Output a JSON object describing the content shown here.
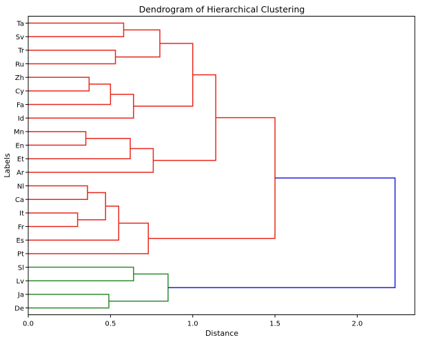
{
  "chart_data": {
    "type": "dendrogram",
    "title": "Dendrogram of Hierarchical Clustering",
    "xlabel": "Distance",
    "ylabel": "Labels",
    "xlim": [
      0,
      2.35
    ],
    "xticks": [
      0.0,
      0.5,
      1.0,
      1.5,
      2.0
    ],
    "xtick_labels": [
      "0.0",
      "0.5",
      "1.0",
      "1.5",
      "2.0"
    ],
    "orientation": "right",
    "colors": {
      "cluster_a": "#e8271b",
      "cluster_b": "#2e8b2e",
      "root": "#1f1fe0"
    },
    "leaves": [
      "Ta",
      "Sv",
      "Tr",
      "Ru",
      "Zh",
      "Cy",
      "Fa",
      "Id",
      "Mn",
      "En",
      "Et",
      "Ar",
      "Nl",
      "Ca",
      "It",
      "Fr",
      "Es",
      "Pt",
      "Sl",
      "Lv",
      "Ja",
      "De"
    ],
    "merges": [
      {
        "a": "Ta",
        "b": "Sv",
        "d": 0.58,
        "color": "cluster_a",
        "id": "m1"
      },
      {
        "a": "Tr",
        "b": "Ru",
        "d": 0.53,
        "color": "cluster_a",
        "id": "m2"
      },
      {
        "a": "m1",
        "b": "m2",
        "d": 0.8,
        "color": "cluster_a",
        "id": "m3"
      },
      {
        "a": "Zh",
        "b": "Cy",
        "d": 0.37,
        "color": "cluster_a",
        "id": "m4"
      },
      {
        "a": "m4",
        "b": "Fa",
        "d": 0.5,
        "color": "cluster_a",
        "id": "m5"
      },
      {
        "a": "m5",
        "b": "Id",
        "d": 0.64,
        "color": "cluster_a",
        "id": "m6"
      },
      {
        "a": "m3",
        "b": "m6",
        "d": 1.0,
        "color": "cluster_a",
        "id": "m7"
      },
      {
        "a": "Mn",
        "b": "En",
        "d": 0.35,
        "color": "cluster_a",
        "id": "m8"
      },
      {
        "a": "m8",
        "b": "Et",
        "d": 0.62,
        "color": "cluster_a",
        "id": "m9"
      },
      {
        "a": "m9",
        "b": "Ar",
        "d": 0.76,
        "color": "cluster_a",
        "id": "m10"
      },
      {
        "a": "m7",
        "b": "m10",
        "d": 1.14,
        "color": "cluster_a",
        "id": "m11"
      },
      {
        "a": "Nl",
        "b": "Ca",
        "d": 0.36,
        "color": "cluster_a",
        "id": "m12"
      },
      {
        "a": "It",
        "b": "Fr",
        "d": 0.3,
        "color": "cluster_a",
        "id": "m13"
      },
      {
        "a": "m12",
        "b": "m13",
        "d": 0.47,
        "color": "cluster_a",
        "id": "m14"
      },
      {
        "a": "m14",
        "b": "Es",
        "d": 0.55,
        "color": "cluster_a",
        "id": "m15"
      },
      {
        "a": "m15",
        "b": "Pt",
        "d": 0.73,
        "color": "cluster_a",
        "id": "m16"
      },
      {
        "a": "m11",
        "b": "m16",
        "d": 1.5,
        "color": "cluster_a",
        "id": "m17"
      },
      {
        "a": "Sl",
        "b": "Lv",
        "d": 0.64,
        "color": "cluster_b",
        "id": "m18"
      },
      {
        "a": "Ja",
        "b": "De",
        "d": 0.49,
        "color": "cluster_b",
        "id": "m19"
      },
      {
        "a": "m18",
        "b": "m19",
        "d": 0.85,
        "color": "cluster_b",
        "id": "m20"
      },
      {
        "a": "m17",
        "b": "m20",
        "d": 2.23,
        "color": "root",
        "id": "m21"
      }
    ]
  }
}
